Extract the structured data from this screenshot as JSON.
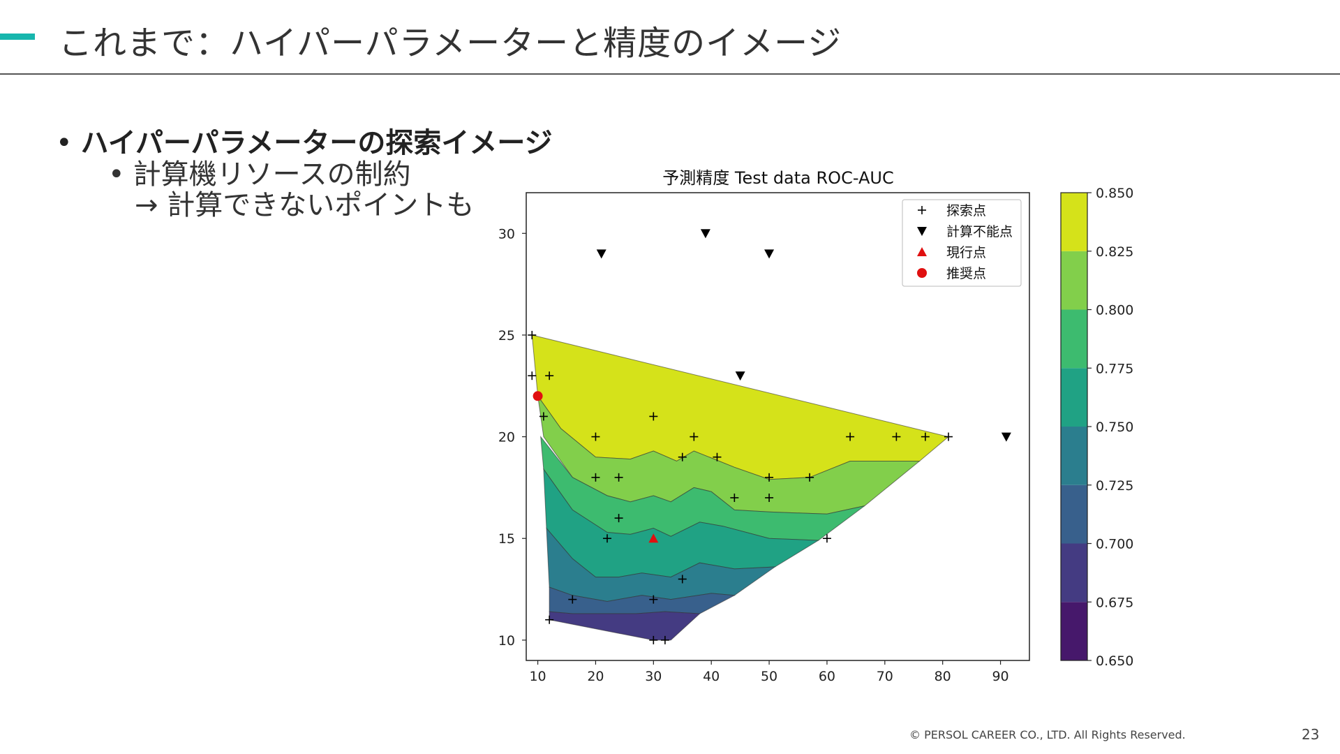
{
  "slide": {
    "title": "これまで：ハイパーパラメーターと精度のイメージ",
    "bullet_main": "ハイパーパラメーターの探索イメージ",
    "bullet_sub_line1": "計算機リソースの制約",
    "bullet_sub_line2": "→ 計算できないポイントも",
    "bullet_marker": "•",
    "footer": "© PERSOL CAREER CO., LTD. All Rights Reserved.",
    "page_number": "23",
    "accent_color": "#17b6ad"
  },
  "chart_data": {
    "type": "contour",
    "title": "予測精度 Test data ROC-AUC",
    "xlim": [
      8,
      95
    ],
    "ylim": [
      9,
      32
    ],
    "xticks": [
      10,
      20,
      30,
      40,
      50,
      60,
      70,
      80,
      90
    ],
    "yticks": [
      10,
      15,
      20,
      25,
      30
    ],
    "colorbar": {
      "levels": [
        0.65,
        0.675,
        0.7,
        0.725,
        0.75,
        0.775,
        0.8,
        0.825,
        0.85
      ],
      "labels": [
        "0.650",
        "0.675",
        "0.700",
        "0.725",
        "0.750",
        "0.775",
        "0.800",
        "0.825",
        "0.850"
      ],
      "colors": [
        "#46186b",
        "#443b82",
        "#38608c",
        "#2b7e8e",
        "#20a284",
        "#3dbb6f",
        "#82cf4b",
        "#d5e21a"
      ]
    },
    "legend": {
      "placement": "top-right",
      "entries": [
        {
          "label": "探索点",
          "marker": "plus",
          "color": "#000000"
        },
        {
          "label": "計算不能点",
          "marker": "triangle-down",
          "color": "#000000"
        },
        {
          "label": "現行点",
          "marker": "triangle-up",
          "color": "#e01010"
        },
        {
          "label": "推奨点",
          "marker": "circle",
          "color": "#e01010"
        }
      ]
    },
    "explored_points": [
      [
        9,
        25
      ],
      [
        9,
        23
      ],
      [
        12,
        23
      ],
      [
        11,
        21
      ],
      [
        20,
        20
      ],
      [
        30,
        21
      ],
      [
        37,
        20
      ],
      [
        41,
        19
      ],
      [
        35,
        19
      ],
      [
        20,
        18
      ],
      [
        24,
        18
      ],
      [
        50,
        18
      ],
      [
        57,
        18
      ],
      [
        44,
        17
      ],
      [
        50,
        17
      ],
      [
        24,
        16
      ],
      [
        22,
        15
      ],
      [
        60,
        15
      ],
      [
        35,
        13
      ],
      [
        16,
        12
      ],
      [
        30,
        12
      ],
      [
        12,
        11
      ],
      [
        30,
        10
      ],
      [
        32,
        10
      ],
      [
        64,
        20
      ],
      [
        72,
        20
      ],
      [
        77,
        20
      ],
      [
        81,
        20
      ]
    ],
    "infeasible_points": [
      [
        21,
        29
      ],
      [
        39,
        30
      ],
      [
        50,
        29
      ],
      [
        45,
        23
      ],
      [
        91,
        20
      ]
    ],
    "current_point": [
      30,
      15
    ],
    "recommended_point": [
      10,
      22
    ],
    "contour_bands": [
      {
        "level_index": 7,
        "polygon": [
          [
            9,
            25
          ],
          [
            81,
            20
          ],
          [
            76,
            18.8
          ],
          [
            64,
            18.8
          ],
          [
            57,
            18
          ],
          [
            50,
            17.9
          ],
          [
            44,
            18.5
          ],
          [
            37,
            19.3
          ],
          [
            34,
            18.8
          ],
          [
            30,
            19.3
          ],
          [
            26,
            18.9
          ],
          [
            20,
            19
          ],
          [
            14,
            20.4
          ],
          [
            10,
            22
          ]
        ]
      },
      {
        "level_index": 6,
        "polygon": [
          [
            10,
            22
          ],
          [
            14,
            20.4
          ],
          [
            20,
            19
          ],
          [
            26,
            18.9
          ],
          [
            30,
            19.3
          ],
          [
            34,
            18.8
          ],
          [
            37,
            19.3
          ],
          [
            44,
            18.5
          ],
          [
            50,
            17.9
          ],
          [
            57,
            18
          ],
          [
            64,
            18.8
          ],
          [
            76,
            18.8
          ],
          [
            66.5,
            16.6
          ],
          [
            60,
            16.2
          ],
          [
            50,
            16.3
          ],
          [
            44,
            16.4
          ],
          [
            40,
            17.3
          ],
          [
            37,
            17.5
          ],
          [
            33,
            16.8
          ],
          [
            30,
            17.1
          ],
          [
            26,
            16.8
          ],
          [
            22,
            17.1
          ],
          [
            16,
            18
          ],
          [
            11,
            20
          ]
        ]
      },
      {
        "level_index": 5,
        "polygon": [
          [
            10.5,
            20
          ],
          [
            16,
            18
          ],
          [
            22,
            17.1
          ],
          [
            26,
            16.8
          ],
          [
            30,
            17.1
          ],
          [
            33,
            16.8
          ],
          [
            37,
            17.5
          ],
          [
            40,
            17.3
          ],
          [
            44,
            16.4
          ],
          [
            50,
            16.3
          ],
          [
            60,
            16.2
          ],
          [
            66.5,
            16.6
          ],
          [
            58.5,
            14.9
          ],
          [
            50,
            15
          ],
          [
            42,
            15.6
          ],
          [
            38,
            15.8
          ],
          [
            33,
            15.1
          ],
          [
            30,
            15.5
          ],
          [
            26,
            15.2
          ],
          [
            22,
            15.3
          ],
          [
            16,
            16.4
          ],
          [
            11,
            18.4
          ]
        ]
      },
      {
        "level_index": 4,
        "polygon": [
          [
            11,
            18.4
          ],
          [
            16,
            16.4
          ],
          [
            22,
            15.3
          ],
          [
            26,
            15.2
          ],
          [
            30,
            15.5
          ],
          [
            33,
            15.1
          ],
          [
            38,
            15.8
          ],
          [
            42,
            15.6
          ],
          [
            50,
            15
          ],
          [
            58.5,
            14.9
          ],
          [
            51,
            13.6
          ],
          [
            44,
            13.5
          ],
          [
            38,
            13.8
          ],
          [
            33,
            13.1
          ],
          [
            28,
            13.3
          ],
          [
            24,
            13.1
          ],
          [
            20,
            13.1
          ],
          [
            16,
            14
          ],
          [
            11.5,
            15.5
          ]
        ]
      },
      {
        "level_index": 3,
        "polygon": [
          [
            11.5,
            15.5
          ],
          [
            16,
            14
          ],
          [
            20,
            13.1
          ],
          [
            24,
            13.1
          ],
          [
            28,
            13.3
          ],
          [
            33,
            13.1
          ],
          [
            38,
            13.8
          ],
          [
            44,
            13.5
          ],
          [
            51,
            13.6
          ],
          [
            44,
            12.2
          ],
          [
            40,
            12.3
          ],
          [
            33,
            12
          ],
          [
            28,
            12.2
          ],
          [
            22,
            11.9
          ],
          [
            16,
            12.2
          ],
          [
            12,
            12.6
          ]
        ]
      },
      {
        "level_index": 2,
        "polygon": [
          [
            12,
            12.6
          ],
          [
            16,
            12.2
          ],
          [
            22,
            11.9
          ],
          [
            28,
            12.2
          ],
          [
            33,
            12
          ],
          [
            40,
            12.3
          ],
          [
            44,
            12.2
          ],
          [
            38,
            11.3
          ],
          [
            32,
            11.4
          ],
          [
            27,
            11.3
          ],
          [
            22,
            11.3
          ],
          [
            16,
            11.3
          ],
          [
            12,
            11.4
          ]
        ]
      },
      {
        "level_index": 1,
        "polygon": [
          [
            12,
            11.4
          ],
          [
            16,
            11.3
          ],
          [
            22,
            11.3
          ],
          [
            27,
            11.3
          ],
          [
            32,
            11.4
          ],
          [
            38,
            11.3
          ],
          [
            33,
            10
          ],
          [
            30,
            10
          ],
          [
            12,
            11
          ]
        ]
      }
    ]
  }
}
